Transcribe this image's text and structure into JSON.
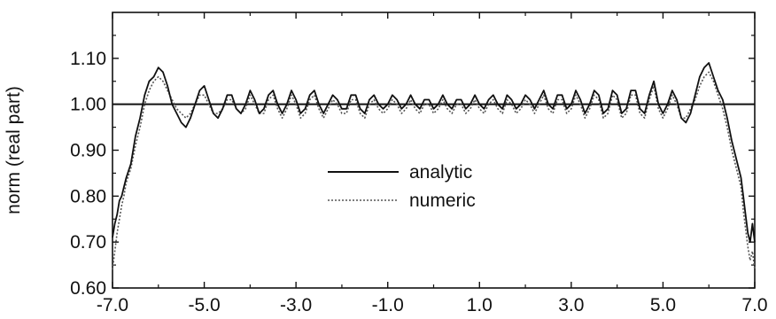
{
  "chart_data": {
    "type": "line",
    "title": "",
    "xlabel": "",
    "ylabel": "norm (real part)",
    "xlim": [
      -7.0,
      7.0
    ],
    "ylim": [
      0.6,
      1.2
    ],
    "x_ticks": [
      -7.0,
      -5.0,
      -3.0,
      -1.0,
      1.0,
      3.0,
      5.0,
      7.0
    ],
    "x_tick_labels": [
      "-7.0",
      "-5.0",
      "-3.0",
      "-1.0",
      "1.0",
      "3.0",
      "5.0",
      "7.0"
    ],
    "y_ticks": [
      0.6,
      0.7,
      0.8,
      0.9,
      1.0,
      1.1
    ],
    "y_tick_labels": [
      "0.60",
      "0.70",
      "0.80",
      "0.90",
      "1.00",
      "1.10"
    ],
    "grid": false,
    "legend_position": "center",
    "reference_line": {
      "y": 1.0
    },
    "series": [
      {
        "name": "analytic",
        "style": "solid",
        "color": "#111111",
        "x": [
          -7.0,
          -6.95,
          -6.9,
          -6.85,
          -6.8,
          -6.75,
          -6.7,
          -6.6,
          -6.5,
          -6.4,
          -6.3,
          -6.2,
          -6.1,
          -6.0,
          -5.9,
          -5.8,
          -5.7,
          -5.6,
          -5.5,
          -5.4,
          -5.3,
          -5.2,
          -5.1,
          -5.0,
          -4.9,
          -4.8,
          -4.7,
          -4.6,
          -4.5,
          -4.4,
          -4.3,
          -4.2,
          -4.1,
          -4.0,
          -3.9,
          -3.8,
          -3.7,
          -3.6,
          -3.5,
          -3.4,
          -3.3,
          -3.2,
          -3.1,
          -3.0,
          -2.9,
          -2.8,
          -2.7,
          -2.6,
          -2.5,
          -2.4,
          -2.3,
          -2.2,
          -2.1,
          -2.0,
          -1.9,
          -1.8,
          -1.7,
          -1.6,
          -1.5,
          -1.4,
          -1.3,
          -1.2,
          -1.1,
          -1.0,
          -0.9,
          -0.8,
          -0.7,
          -0.6,
          -0.5,
          -0.4,
          -0.3,
          -0.2,
          -0.1,
          0.0,
          0.1,
          0.2,
          0.3,
          0.4,
          0.5,
          0.6,
          0.7,
          0.8,
          0.9,
          1.0,
          1.1,
          1.2,
          1.3,
          1.4,
          1.5,
          1.6,
          1.7,
          1.8,
          1.9,
          2.0,
          2.1,
          2.2,
          2.3,
          2.4,
          2.5,
          2.6,
          2.7,
          2.8,
          2.9,
          3.0,
          3.1,
          3.2,
          3.3,
          3.4,
          3.5,
          3.6,
          3.7,
          3.8,
          3.9,
          4.0,
          4.1,
          4.2,
          4.3,
          4.4,
          4.5,
          4.6,
          4.7,
          4.8,
          4.9,
          5.0,
          5.1,
          5.2,
          5.3,
          5.4,
          5.5,
          5.6,
          5.7,
          5.8,
          5.9,
          6.0,
          6.1,
          6.2,
          6.3,
          6.4,
          6.5,
          6.6,
          6.7,
          6.75,
          6.8,
          6.85,
          6.9,
          6.95,
          7.0
        ],
        "y": [
          0.71,
          0.74,
          0.76,
          0.79,
          0.8,
          0.82,
          0.84,
          0.87,
          0.93,
          0.97,
          1.02,
          1.05,
          1.06,
          1.08,
          1.07,
          1.04,
          1.0,
          0.98,
          0.96,
          0.95,
          0.97,
          1.0,
          1.03,
          1.04,
          1.01,
          0.98,
          0.97,
          0.99,
          1.02,
          1.02,
          0.99,
          0.98,
          1.0,
          1.03,
          1.01,
          0.98,
          0.99,
          1.02,
          1.03,
          1.0,
          0.98,
          1.0,
          1.03,
          1.01,
          0.98,
          0.99,
          1.02,
          1.03,
          1.0,
          0.98,
          1.0,
          1.02,
          1.01,
          0.99,
          0.99,
          1.02,
          1.02,
          0.99,
          0.98,
          1.01,
          1.02,
          1.0,
          0.99,
          1.0,
          1.02,
          1.01,
          0.99,
          1.0,
          1.02,
          1.0,
          0.99,
          1.01,
          1.01,
          0.99,
          1.0,
          1.02,
          1.0,
          0.99,
          1.01,
          1.01,
          0.99,
          1.0,
          1.02,
          1.0,
          0.99,
          1.01,
          1.02,
          1.0,
          0.99,
          1.02,
          1.01,
          0.99,
          1.0,
          1.02,
          1.01,
          0.99,
          1.01,
          1.03,
          1.0,
          0.99,
          1.02,
          1.02,
          0.99,
          1.0,
          1.03,
          1.01,
          0.98,
          1.0,
          1.03,
          1.02,
          0.98,
          0.99,
          1.03,
          1.02,
          0.98,
          0.99,
          1.03,
          1.03,
          0.99,
          0.98,
          1.02,
          1.05,
          1.0,
          0.98,
          1.0,
          1.03,
          1.01,
          0.97,
          0.96,
          0.98,
          1.02,
          1.06,
          1.08,
          1.09,
          1.06,
          1.03,
          1.01,
          0.97,
          0.92,
          0.88,
          0.84,
          0.8,
          0.76,
          0.72,
          0.7,
          0.74,
          0.7
        ]
      },
      {
        "name": "numeric",
        "style": "dotted",
        "color": "#555555",
        "x": [
          -7.0,
          -6.95,
          -6.9,
          -6.85,
          -6.8,
          -6.75,
          -6.7,
          -6.6,
          -6.5,
          -6.4,
          -6.3,
          -6.2,
          -6.1,
          -6.0,
          -5.9,
          -5.8,
          -5.7,
          -5.6,
          -5.5,
          -5.4,
          -5.3,
          -5.2,
          -5.1,
          -5.0,
          -4.9,
          -4.8,
          -4.7,
          -4.6,
          -4.5,
          -4.4,
          -4.3,
          -4.2,
          -4.1,
          -4.0,
          -3.9,
          -3.8,
          -3.7,
          -3.6,
          -3.5,
          -3.4,
          -3.3,
          -3.2,
          -3.1,
          -3.0,
          -2.9,
          -2.8,
          -2.7,
          -2.6,
          -2.5,
          -2.4,
          -2.3,
          -2.2,
          -2.1,
          -2.0,
          -1.9,
          -1.8,
          -1.7,
          -1.6,
          -1.5,
          -1.4,
          -1.3,
          -1.2,
          -1.1,
          -1.0,
          -0.9,
          -0.8,
          -0.7,
          -0.6,
          -0.5,
          -0.4,
          -0.3,
          -0.2,
          -0.1,
          0.0,
          0.1,
          0.2,
          0.3,
          0.4,
          0.5,
          0.6,
          0.7,
          0.8,
          0.9,
          1.0,
          1.1,
          1.2,
          1.3,
          1.4,
          1.5,
          1.6,
          1.7,
          1.8,
          1.9,
          2.0,
          2.1,
          2.2,
          2.3,
          2.4,
          2.5,
          2.6,
          2.7,
          2.8,
          2.9,
          3.0,
          3.1,
          3.2,
          3.3,
          3.4,
          3.5,
          3.6,
          3.7,
          3.8,
          3.9,
          4.0,
          4.1,
          4.2,
          4.3,
          4.4,
          4.5,
          4.6,
          4.7,
          4.8,
          4.9,
          5.0,
          5.1,
          5.2,
          5.3,
          5.4,
          5.5,
          5.6,
          5.7,
          5.8,
          5.9,
          6.0,
          6.1,
          6.2,
          6.3,
          6.4,
          6.5,
          6.6,
          6.7,
          6.75,
          6.8,
          6.85,
          6.9,
          6.95,
          7.0
        ],
        "y": [
          0.64,
          0.68,
          0.72,
          0.75,
          0.78,
          0.8,
          0.83,
          0.86,
          0.91,
          0.95,
          1.0,
          1.03,
          1.05,
          1.06,
          1.05,
          1.03,
          1.01,
          0.99,
          0.98,
          0.97,
          0.98,
          1.0,
          1.02,
          1.02,
          1.0,
          0.98,
          0.98,
          0.99,
          1.01,
          1.01,
          0.99,
          0.98,
          0.99,
          1.02,
          1.0,
          0.98,
          0.98,
          1.01,
          1.02,
          0.99,
          0.97,
          0.99,
          1.02,
          1.0,
          0.97,
          0.98,
          1.01,
          1.02,
          0.99,
          0.97,
          0.99,
          1.01,
          1.0,
          0.98,
          0.98,
          1.01,
          1.01,
          0.98,
          0.97,
          1.0,
          1.01,
          0.99,
          0.98,
          0.99,
          1.01,
          1.0,
          0.98,
          0.99,
          1.01,
          0.99,
          0.98,
          1.0,
          1.0,
          0.98,
          0.99,
          1.01,
          0.99,
          0.98,
          1.0,
          1.0,
          0.98,
          0.99,
          1.01,
          0.99,
          0.98,
          1.0,
          1.01,
          0.99,
          0.98,
          1.01,
          1.0,
          0.98,
          0.99,
          1.01,
          1.0,
          0.98,
          1.0,
          1.02,
          0.99,
          0.98,
          1.01,
          1.01,
          0.98,
          0.99,
          1.02,
          1.0,
          0.97,
          0.99,
          1.02,
          1.01,
          0.97,
          0.98,
          1.02,
          1.01,
          0.97,
          0.98,
          1.02,
          1.02,
          0.98,
          0.97,
          1.01,
          1.04,
          0.99,
          0.97,
          0.99,
          1.02,
          1.0,
          0.97,
          0.97,
          0.99,
          1.01,
          1.04,
          1.06,
          1.07,
          1.05,
          1.02,
          0.99,
          0.95,
          0.9,
          0.86,
          0.82,
          0.77,
          0.73,
          0.69,
          0.66,
          0.68,
          0.64
        ]
      }
    ]
  }
}
